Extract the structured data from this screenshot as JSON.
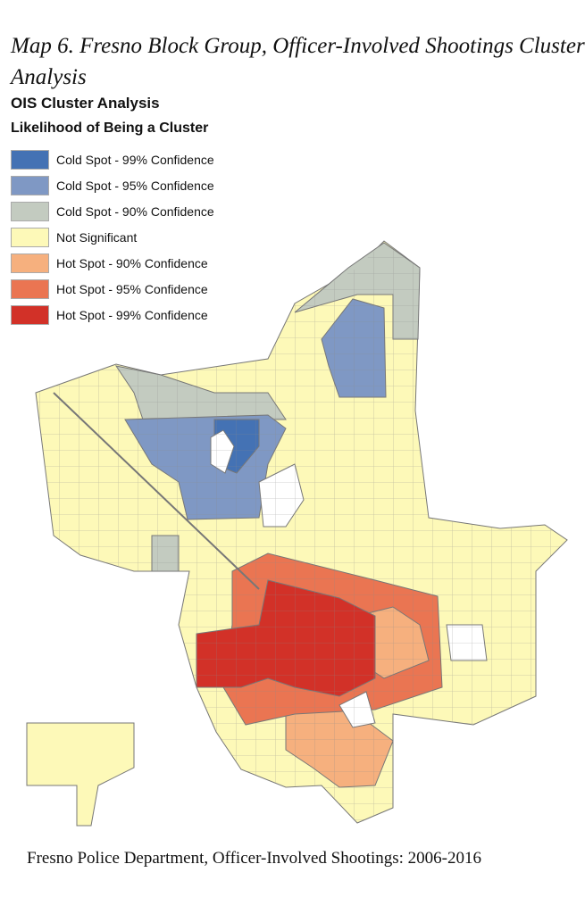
{
  "title": "Map 6. Fresno Block Group, Officer-Involved Shootings Cluster Analysis",
  "legend": {
    "heading": "OIS Cluster Analysis",
    "subheading": "Likelihood of Being a Cluster",
    "items": [
      {
        "label": "Cold Spot - 99% Confidence",
        "color": "#4472b4"
      },
      {
        "label": "Cold Spot - 95% Confidence",
        "color": "#7f98c4"
      },
      {
        "label": "Cold Spot - 90% Confidence",
        "color": "#c3cbc0"
      },
      {
        "label": "Not Significant",
        "color": "#fdf9b8"
      },
      {
        "label": "Hot Spot - 90% Confidence",
        "color": "#f6b07e"
      },
      {
        "label": "Hot Spot - 95% Confidence",
        "color": "#ea7552"
      },
      {
        "label": "Hot Spot - 99% Confidence",
        "color": "#d23128"
      }
    ]
  },
  "caption": "Fresno Police Department, Officer-Involved Shootings: 2006-2016"
}
